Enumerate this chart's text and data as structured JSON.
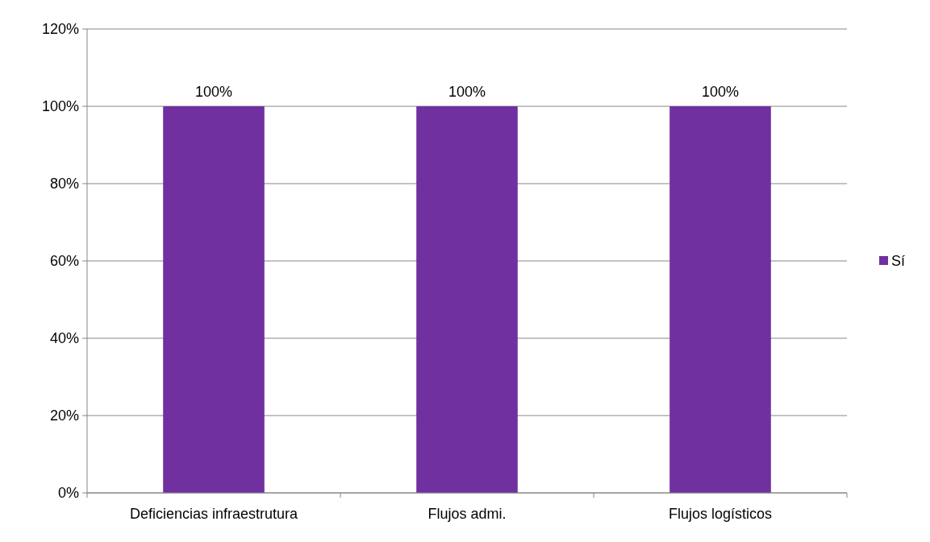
{
  "chart_data": {
    "type": "bar",
    "categories": [
      "Deficiencias infraestrutura",
      "Flujos admi.",
      "Flujos logísticos"
    ],
    "series": [
      {
        "name": "Sí",
        "color": "#7030a0",
        "values": [
          100,
          100,
          100
        ],
        "value_labels": [
          "100%",
          "100%",
          "100%"
        ]
      }
    ],
    "ylim": [
      0,
      120
    ],
    "yticks": [
      {
        "value": 0,
        "label": "0%"
      },
      {
        "value": 20,
        "label": "20%"
      },
      {
        "value": 40,
        "label": "40%"
      },
      {
        "value": 60,
        "label": "60%"
      },
      {
        "value": 80,
        "label": "80%"
      },
      {
        "value": 100,
        "label": "100%"
      },
      {
        "value": 120,
        "label": "120%"
      }
    ],
    "grid": "y",
    "legend": "right"
  }
}
